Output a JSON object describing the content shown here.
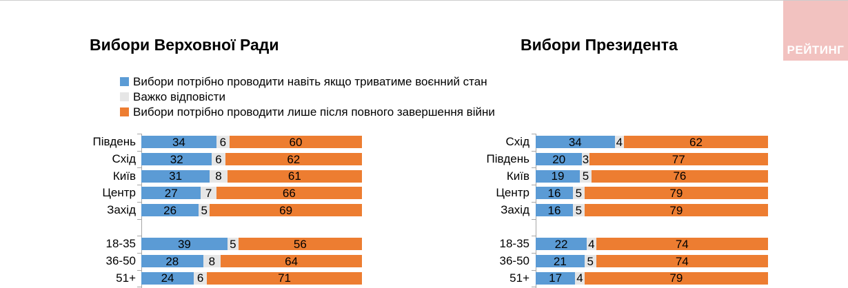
{
  "page": {
    "background": "#ffffff",
    "top_border_color": "#cdcdcd"
  },
  "logo": {
    "text": "РЕЙТИНГ",
    "bg_color": "#f2c2c0",
    "text_color": "#ffffff"
  },
  "colors": {
    "wartime_blue": "#5b9bd5",
    "undecided_gray": "#e6e6e6",
    "afterwar_orange": "#ed7d31",
    "axis_gray": "#a6a6a6",
    "label_text": "#000000"
  },
  "legend": {
    "items": [
      {
        "label": "Вибори потрібно проводити навіть якщо триватиме воєнний стан",
        "color": "#5b9bd5"
      },
      {
        "label": "Важко відповісти",
        "color": "#e6e6e6"
      },
      {
        "label": "Вибори потрібно проводити лише після повного завершення війни",
        "color": "#ed7d31"
      }
    ]
  },
  "chart_data": [
    {
      "type": "bar",
      "orientation": "horizontal",
      "stacked": true,
      "title": "Вибори Верховної Ради",
      "xlim": [
        0,
        100
      ],
      "value_unit": "%",
      "series_names": [
        "Вибори потрібно проводити навіть якщо триватиме воєнний стан",
        "Важко відповісти",
        "Вибори потрібно проводити лише після повного завершення війни"
      ],
      "groups": [
        {
          "categories": [
            "Південь",
            "Схід",
            "Київ",
            "Центр",
            "Захід"
          ],
          "values": [
            [
              34,
              6,
              60
            ],
            [
              32,
              6,
              62
            ],
            [
              31,
              8,
              61
            ],
            [
              27,
              7,
              66
            ],
            [
              26,
              5,
              69
            ]
          ]
        },
        {
          "categories": [
            "18-35",
            "36-50",
            "51+"
          ],
          "values": [
            [
              39,
              5,
              56
            ],
            [
              28,
              8,
              64
            ],
            [
              24,
              6,
              71
            ]
          ]
        }
      ]
    },
    {
      "type": "bar",
      "orientation": "horizontal",
      "stacked": true,
      "title": "Вибори Президента",
      "xlim": [
        0,
        100
      ],
      "value_unit": "%",
      "series_names": [
        "Вибори потрібно проводити навіть якщо триватиме воєнний стан",
        "Важко відповісти",
        "Вибори потрібно проводити лише після повного завершення війни"
      ],
      "groups": [
        {
          "categories": [
            "Схід",
            "Південь",
            "Київ",
            "Центр",
            "Захід"
          ],
          "values": [
            [
              34,
              4,
              62
            ],
            [
              20,
              3,
              77
            ],
            [
              19,
              5,
              76
            ],
            [
              16,
              5,
              79
            ],
            [
              16,
              5,
              79
            ]
          ]
        },
        {
          "categories": [
            "18-35",
            "36-50",
            "51+"
          ],
          "values": [
            [
              22,
              4,
              74
            ],
            [
              21,
              5,
              74
            ],
            [
              17,
              4,
              79
            ]
          ]
        }
      ]
    }
  ]
}
